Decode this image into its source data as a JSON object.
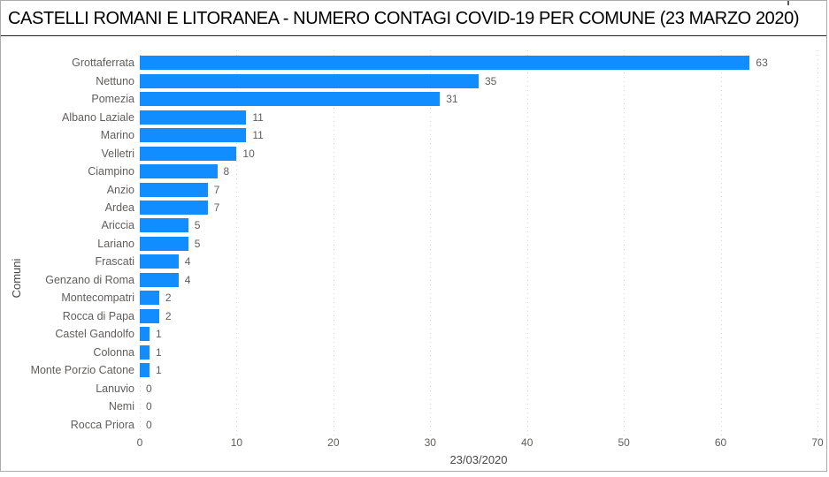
{
  "header": {
    "title": "CASTELLI ROMANI E LITORANEA - NUMERO CONTAGI COVID-19 PER COMUNE (23 MARZO 2020)"
  },
  "chart_data": {
    "type": "bar",
    "orientation": "horizontal",
    "title": "CASTELLI ROMANI E LITORANEA - NUMERO CONTAGI COVID-19 PER COMUNE (23 MARZO 2020)",
    "categories": [
      "Grottaferrata",
      "Nettuno",
      "Pomezia",
      "Albano Laziale",
      "Marino",
      "Velletri",
      "Ciampino",
      "Anzio",
      "Ardea",
      "Ariccia",
      "Lariano",
      "Frascati",
      "Genzano di Roma",
      "Montecompatri",
      "Rocca di Papa",
      "Castel Gandolfo",
      "Colonna",
      "Monte Porzio Catone",
      "Lanuvio",
      "Nemi",
      "Rocca Priora"
    ],
    "values": [
      63,
      35,
      31,
      11,
      11,
      10,
      8,
      7,
      7,
      5,
      5,
      4,
      4,
      2,
      2,
      1,
      1,
      1,
      0,
      0,
      0
    ],
    "xlabel": "23/03/2020",
    "ylabel": "Comuni",
    "xlim": [
      0,
      70
    ],
    "xticks": [
      0,
      10,
      20,
      30,
      40,
      50,
      60,
      70
    ],
    "xtick_labels": [
      "0",
      "10",
      "20",
      "30",
      "40",
      "50",
      "60",
      "70"
    ],
    "grid": "vertical-dotted",
    "legend": "none",
    "colors": {
      "bar": "#118DFF",
      "axis_text": "#605e5c",
      "axis_title_text": "#474747",
      "chart_title_text": "#000000",
      "gridline": "#d9d9d9",
      "frame_border": "#ababab"
    }
  }
}
